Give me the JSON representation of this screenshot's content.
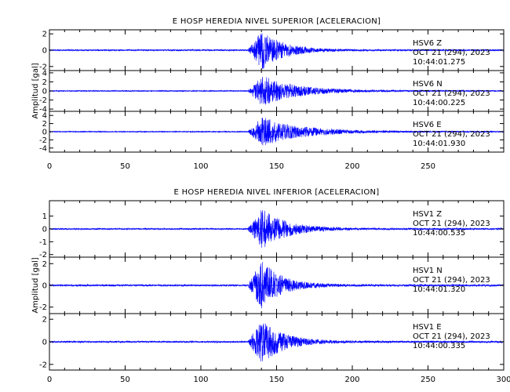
{
  "chart_data": [
    {
      "type": "line",
      "title": "E HOSP HEREDIA NIVEL SUPERIOR [ACELERACION]",
      "ylabel": "Amplitud [gal]",
      "xlabel": "",
      "xlim": [
        0,
        300
      ],
      "xticks": [
        "0",
        "50",
        "100",
        "150",
        "200",
        "250"
      ],
      "grid": false,
      "line_color": "#0000ff",
      "series": [
        {
          "name": "HSV6   Z",
          "date_label": "OCT 21 (294), 2023",
          "time_label": "10:44:01.275",
          "ylim": [
            -2.5,
            2.5
          ],
          "yticks": [
            "2",
            "0",
            "-2"
          ],
          "onset": 131,
          "peak": 2.4,
          "decay": 14
        },
        {
          "name": "HSV6   N",
          "date_label": "OCT 21 (294), 2023",
          "time_label": "10:44:00.225",
          "ylim": [
            -4.5,
            4.5
          ],
          "yticks": [
            "4",
            "2",
            "0",
            "-2",
            "-4"
          ],
          "onset": 131,
          "peak": 3.4,
          "decay": 22
        },
        {
          "name": "HSV6   E",
          "date_label": "OCT 21 (294), 2023",
          "time_label": "10:44:01.930",
          "ylim": [
            -5,
            5
          ],
          "yticks": [
            "4",
            "2",
            "0",
            "-2",
            "-4"
          ],
          "onset": 131,
          "peak": 3.6,
          "decay": 25
        }
      ]
    },
    {
      "type": "line",
      "title": "E HOSP HEREDIA NIVEL INFERIOR [ACELERACION]",
      "ylabel": "Amplitud [gal]",
      "xlabel": "",
      "xlim": [
        0,
        300
      ],
      "xticks": [
        "0",
        "50",
        "100",
        "150",
        "200",
        "250",
        "300"
      ],
      "grid": false,
      "line_color": "#0000ff",
      "series": [
        {
          "name": "HSV1   Z",
          "date_label": "OCT 21 (294), 2023",
          "time_label": "10:44:00.535",
          "ylim": [
            -2.2,
            2.2
          ],
          "yticks": [
            "1",
            "0",
            "-1",
            "-2"
          ],
          "onset": 131,
          "peak": 1.6,
          "decay": 16
        },
        {
          "name": "HSV1   N",
          "date_label": "OCT 21 (294), 2023",
          "time_label": "10:44:01.320",
          "ylim": [
            -2.6,
            2.6
          ],
          "yticks": [
            "2",
            "0",
            "-2"
          ],
          "onset": 131,
          "peak": 2.3,
          "decay": 13
        },
        {
          "name": "HSV1   E",
          "date_label": "OCT 21 (294), 2023",
          "time_label": "10:44:00.335",
          "ylim": [
            -2.5,
            2.5
          ],
          "yticks": [
            "2",
            "0",
            "-2"
          ],
          "onset": 131,
          "peak": 2.0,
          "decay": 14
        }
      ]
    }
  ]
}
